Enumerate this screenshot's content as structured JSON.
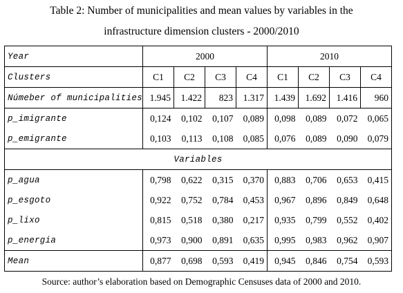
{
  "title": [
    "Table 2: Number of municipalities and mean values by variables in the",
    "infrastructure dimension clusters - 2000/2010"
  ],
  "table": {
    "year_row": [
      "Year",
      "2000",
      "2010"
    ],
    "cluster_row": [
      "Clusters",
      "C1",
      "C2",
      "C3",
      "C4",
      "C1",
      "C2",
      "C3",
      "C4"
    ],
    "count_row": [
      "Númeber of municipalities",
      "1.945",
      "1.422",
      "823",
      "1.317",
      "1.439",
      "1.692",
      "1.416",
      "960"
    ],
    "migration_rows": [
      [
        "p_imigrante",
        "0,124",
        "0,102",
        "0,107",
        "0,089",
        "0,098",
        "0,089",
        "0,072",
        "0,065"
      ],
      [
        "p_emigrante",
        "0,103",
        "0,113",
        "0,108",
        "0,085",
        "0,076",
        "0,089",
        "0,090",
        "0,079"
      ]
    ],
    "section_label": "Variables",
    "variable_rows": [
      [
        "p_agua",
        "0,798",
        "0,622",
        "0,315",
        "0,370",
        "0,883",
        "0,706",
        "0,653",
        "0,415"
      ],
      [
        "p_esgoto",
        "0,922",
        "0,752",
        "0,784",
        "0,453",
        "0,967",
        "0,896",
        "0,849",
        "0,648"
      ],
      [
        "p_lixo",
        "0,815",
        "0,518",
        "0,380",
        "0,217",
        "0,935",
        "0,799",
        "0,552",
        "0,402"
      ],
      [
        "p_energia",
        "0,973",
        "0,900",
        "0,891",
        "0,635",
        "0,995",
        "0,983",
        "0,962",
        "0,907"
      ]
    ],
    "mean_row": [
      "Mean",
      "0,877",
      "0,698",
      "0,593",
      "0,419",
      "0,945",
      "0,846",
      "0,754",
      "0,593"
    ]
  },
  "note": "Source: author’s elaboration based on Demographic Censuses data of 2000 and 2010."
}
